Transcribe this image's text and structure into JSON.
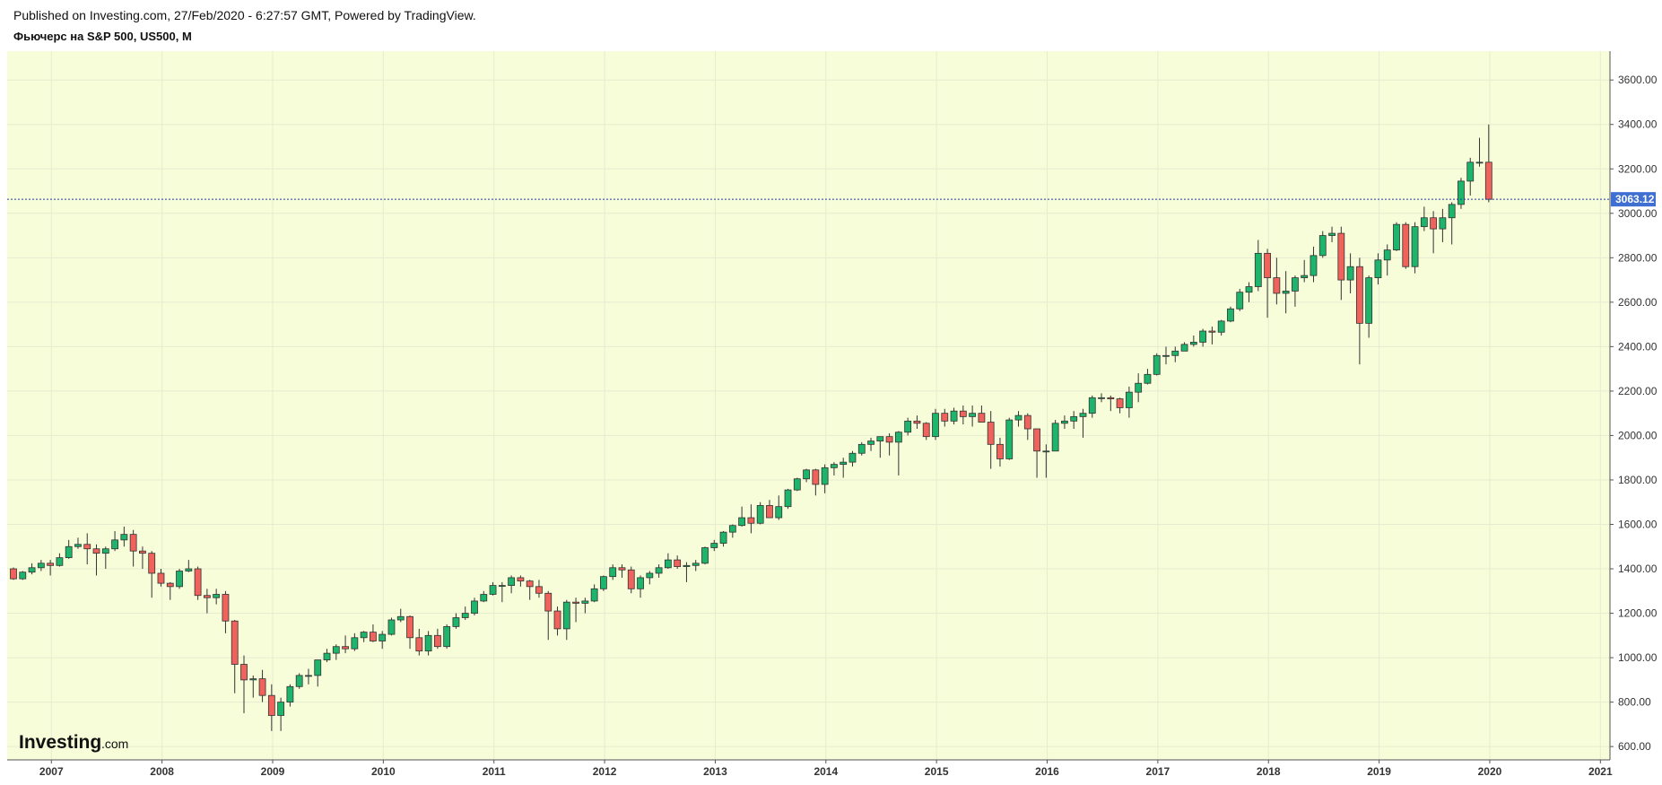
{
  "header": {
    "published": "Published on Investing.com, 27/Feb/2020 - 6:27:57 GMT, Powered by TradingView.",
    "instrument": "Фьючерс на S&P 500, US500, M"
  },
  "logo": {
    "brand": "Investing",
    "suffix": ".com"
  },
  "colors": {
    "background": "#f7fcd9",
    "up": "#1db46c",
    "down": "#f0625c",
    "wick": "#333333",
    "price_line": "#1f3a9c",
    "price_tag": "#3f6fd1"
  },
  "chart_data": {
    "type": "candlestick",
    "title": "Фьючерс на S&P 500, US500, M",
    "interval": "M",
    "start": "2006-12",
    "x_ticks": [
      "2007",
      "2008",
      "2009",
      "2010",
      "2011",
      "2012",
      "2013",
      "2014",
      "2015",
      "2016",
      "2017",
      "2018",
      "2019",
      "2020",
      "2021"
    ],
    "y_ticks": [
      "600.00",
      "800.00",
      "1000.00",
      "1200.00",
      "1400.00",
      "1600.00",
      "1800.00",
      "2000.00",
      "2200.00",
      "2400.00",
      "2600.00",
      "2800.00",
      "3000.00",
      "3200.00",
      "3400.00",
      "3600.00"
    ],
    "ylim": [
      540,
      3730
    ],
    "last_price": "3063.12",
    "grid": true,
    "candles": [
      [
        1400,
        1406,
        1350,
        1355
      ],
      [
        1355,
        1390,
        1350,
        1385
      ],
      [
        1385,
        1425,
        1375,
        1405
      ],
      [
        1405,
        1440,
        1390,
        1425
      ],
      [
        1425,
        1440,
        1370,
        1415
      ],
      [
        1415,
        1470,
        1410,
        1450
      ],
      [
        1450,
        1530,
        1445,
        1500
      ],
      [
        1500,
        1540,
        1490,
        1510
      ],
      [
        1510,
        1560,
        1420,
        1490
      ],
      [
        1490,
        1510,
        1370,
        1470
      ],
      [
        1470,
        1500,
        1400,
        1490
      ],
      [
        1490,
        1570,
        1480,
        1530
      ],
      [
        1530,
        1590,
        1500,
        1555
      ],
      [
        1555,
        1575,
        1410,
        1480
      ],
      [
        1480,
        1500,
        1400,
        1470
      ],
      [
        1470,
        1480,
        1270,
        1380
      ],
      [
        1380,
        1400,
        1320,
        1335
      ],
      [
        1335,
        1340,
        1260,
        1320
      ],
      [
        1320,
        1400,
        1310,
        1390
      ],
      [
        1390,
        1440,
        1385,
        1400
      ],
      [
        1400,
        1410,
        1260,
        1280
      ],
      [
        1280,
        1310,
        1200,
        1270
      ],
      [
        1270,
        1310,
        1240,
        1285
      ],
      [
        1285,
        1300,
        1110,
        1165
      ],
      [
        1165,
        1170,
        840,
        970
      ],
      [
        970,
        1010,
        750,
        900
      ],
      [
        900,
        920,
        820,
        905
      ],
      [
        905,
        945,
        800,
        830
      ],
      [
        830,
        880,
        670,
        740
      ],
      [
        740,
        820,
        670,
        800
      ],
      [
        800,
        880,
        780,
        870
      ],
      [
        870,
        930,
        860,
        920
      ],
      [
        920,
        950,
        880,
        920
      ],
      [
        920,
        990,
        870,
        990
      ],
      [
        990,
        1040,
        980,
        1020
      ],
      [
        1020,
        1060,
        990,
        1050
      ],
      [
        1050,
        1100,
        1020,
        1040
      ],
      [
        1040,
        1110,
        1030,
        1090
      ],
      [
        1090,
        1120,
        1070,
        1115
      ],
      [
        1115,
        1150,
        1070,
        1075
      ],
      [
        1075,
        1120,
        1040,
        1105
      ],
      [
        1105,
        1180,
        1100,
        1170
      ],
      [
        1170,
        1220,
        1160,
        1185
      ],
      [
        1185,
        1190,
        1040,
        1090
      ],
      [
        1090,
        1130,
        1010,
        1030
      ],
      [
        1030,
        1120,
        1010,
        1100
      ],
      [
        1100,
        1130,
        1040,
        1050
      ],
      [
        1050,
        1150,
        1040,
        1140
      ],
      [
        1140,
        1200,
        1130,
        1180
      ],
      [
        1180,
        1230,
        1170,
        1200
      ],
      [
        1200,
        1270,
        1190,
        1255
      ],
      [
        1255,
        1300,
        1250,
        1285
      ],
      [
        1285,
        1340,
        1280,
        1325
      ],
      [
        1325,
        1340,
        1250,
        1325
      ],
      [
        1325,
        1370,
        1290,
        1360
      ],
      [
        1360,
        1370,
        1320,
        1345
      ],
      [
        1345,
        1350,
        1260,
        1320
      ],
      [
        1320,
        1350,
        1270,
        1290
      ],
      [
        1290,
        1300,
        1080,
        1210
      ],
      [
        1210,
        1230,
        1100,
        1130
      ],
      [
        1130,
        1260,
        1080,
        1250
      ],
      [
        1250,
        1270,
        1160,
        1245
      ],
      [
        1245,
        1270,
        1200,
        1255
      ],
      [
        1255,
        1330,
        1250,
        1310
      ],
      [
        1310,
        1370,
        1300,
        1365
      ],
      [
        1365,
        1420,
        1350,
        1405
      ],
      [
        1405,
        1420,
        1360,
        1395
      ],
      [
        1395,
        1410,
        1290,
        1310
      ],
      [
        1310,
        1370,
        1270,
        1360
      ],
      [
        1360,
        1390,
        1330,
        1380
      ],
      [
        1380,
        1420,
        1360,
        1405
      ],
      [
        1405,
        1470,
        1400,
        1440
      ],
      [
        1440,
        1460,
        1400,
        1410
      ],
      [
        1410,
        1430,
        1340,
        1415
      ],
      [
        1415,
        1440,
        1390,
        1425
      ],
      [
        1425,
        1500,
        1420,
        1495
      ],
      [
        1495,
        1530,
        1480,
        1515
      ],
      [
        1515,
        1570,
        1500,
        1565
      ],
      [
        1565,
        1600,
        1540,
        1595
      ],
      [
        1595,
        1680,
        1590,
        1630
      ],
      [
        1630,
        1690,
        1560,
        1605
      ],
      [
        1605,
        1700,
        1600,
        1685
      ],
      [
        1685,
        1710,
        1630,
        1630
      ],
      [
        1630,
        1730,
        1620,
        1680
      ],
      [
        1680,
        1760,
        1670,
        1755
      ],
      [
        1755,
        1810,
        1750,
        1805
      ],
      [
        1805,
        1850,
        1790,
        1845
      ],
      [
        1845,
        1850,
        1730,
        1780
      ],
      [
        1780,
        1870,
        1740,
        1855
      ],
      [
        1855,
        1880,
        1820,
        1870
      ],
      [
        1870,
        1900,
        1810,
        1880
      ],
      [
        1880,
        1930,
        1860,
        1920
      ],
      [
        1920,
        1970,
        1910,
        1960
      ],
      [
        1960,
        1990,
        1930,
        1975
      ],
      [
        1975,
        1995,
        1900,
        1995
      ],
      [
        1995,
        2010,
        1910,
        1970
      ],
      [
        1970,
        2020,
        1820,
        2015
      ],
      [
        2015,
        2080,
        2000,
        2065
      ],
      [
        2065,
        2090,
        2030,
        2055
      ],
      [
        2055,
        2060,
        1980,
        1995
      ],
      [
        1995,
        2120,
        1980,
        2100
      ],
      [
        2100,
        2120,
        2040,
        2065
      ],
      [
        2065,
        2125,
        2050,
        2110
      ],
      [
        2110,
        2135,
        2050,
        2085
      ],
      [
        2085,
        2135,
        2040,
        2100
      ],
      [
        2100,
        2135,
        2060,
        2060
      ],
      [
        2060,
        2110,
        1850,
        1960
      ],
      [
        1960,
        1990,
        1860,
        1895
      ],
      [
        1895,
        2080,
        1890,
        2070
      ],
      [
        2070,
        2110,
        2040,
        2090
      ],
      [
        2090,
        2100,
        1980,
        2030
      ],
      [
        2030,
        2030,
        1810,
        1930
      ],
      [
        1930,
        1960,
        1810,
        1930
      ],
      [
        1930,
        2070,
        1930,
        2055
      ],
      [
        2055,
        2090,
        2030,
        2065
      ],
      [
        2065,
        2110,
        2030,
        2085
      ],
      [
        2085,
        2120,
        1990,
        2100
      ],
      [
        2100,
        2180,
        2080,
        2170
      ],
      [
        2170,
        2190,
        2150,
        2170
      ],
      [
        2170,
        2180,
        2110,
        2165
      ],
      [
        2165,
        2170,
        2100,
        2125
      ],
      [
        2125,
        2220,
        2080,
        2195
      ],
      [
        2195,
        2280,
        2150,
        2235
      ],
      [
        2235,
        2300,
        2230,
        2275
      ],
      [
        2275,
        2370,
        2270,
        2360
      ],
      [
        2360,
        2400,
        2320,
        2360
      ],
      [
        2360,
        2400,
        2330,
        2380
      ],
      [
        2380,
        2420,
        2380,
        2410
      ],
      [
        2410,
        2450,
        2400,
        2420
      ],
      [
        2420,
        2480,
        2400,
        2470
      ],
      [
        2470,
        2490,
        2410,
        2465
      ],
      [
        2465,
        2520,
        2450,
        2515
      ],
      [
        2515,
        2580,
        2510,
        2570
      ],
      [
        2570,
        2660,
        2560,
        2645
      ],
      [
        2645,
        2690,
        2600,
        2670
      ],
      [
        2670,
        2880,
        2650,
        2820
      ],
      [
        2820,
        2840,
        2530,
        2710
      ],
      [
        2710,
        2800,
        2590,
        2640
      ],
      [
        2640,
        2740,
        2550,
        2650
      ],
      [
        2650,
        2720,
        2580,
        2710
      ],
      [
        2710,
        2790,
        2690,
        2720
      ],
      [
        2720,
        2850,
        2690,
        2810
      ],
      [
        2810,
        2920,
        2800,
        2900
      ],
      [
        2900,
        2940,
        2870,
        2910
      ],
      [
        2910,
        2940,
        2610,
        2700
      ],
      [
        2700,
        2820,
        2640,
        2760
      ],
      [
        2760,
        2800,
        2320,
        2505
      ],
      [
        2505,
        2720,
        2440,
        2710
      ],
      [
        2710,
        2820,
        2680,
        2790
      ],
      [
        2790,
        2860,
        2720,
        2835
      ],
      [
        2835,
        2960,
        2830,
        2950
      ],
      [
        2950,
        2960,
        2750,
        2760
      ],
      [
        2760,
        2960,
        2730,
        2940
      ],
      [
        2940,
        3030,
        2920,
        2980
      ],
      [
        2980,
        3010,
        2820,
        2930
      ],
      [
        2930,
        3020,
        2870,
        2980
      ],
      [
        2980,
        3050,
        2860,
        3040
      ],
      [
        3040,
        3160,
        3020,
        3145
      ],
      [
        3145,
        3250,
        3080,
        3230
      ],
      [
        3230,
        3340,
        3210,
        3230
      ],
      [
        3230,
        3400,
        3050,
        3063
      ]
    ]
  }
}
